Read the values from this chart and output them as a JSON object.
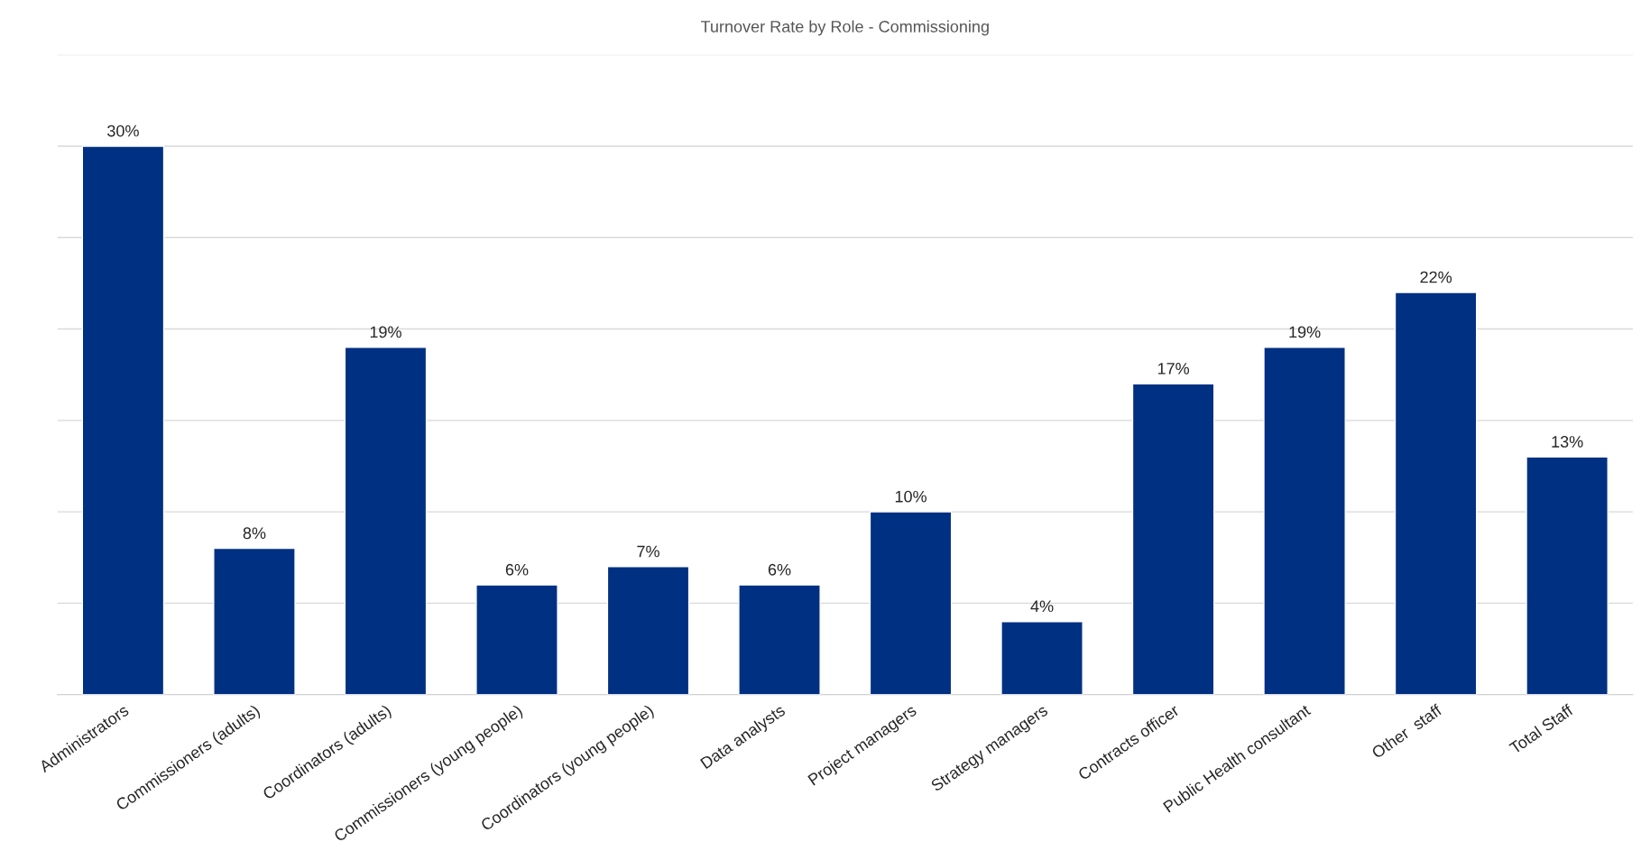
{
  "chart_data": {
    "type": "bar",
    "title": "Turnover Rate by Role - Commissioning",
    "categories": [
      "Administrators",
      "Commissioners (adults)",
      "Coordinators (adults)",
      "Commissioners (young people)",
      "Coordinators (young people)",
      "Data analysts",
      "Project managers",
      "Strategy managers",
      "Contracts officer",
      "Public Health consultant",
      "Other  staff",
      "Total Staff"
    ],
    "values": [
      30,
      8,
      19,
      6,
      7,
      6,
      10,
      4,
      17,
      19,
      22,
      13
    ],
    "value_labels": [
      "30%",
      "8%",
      "19%",
      "6%",
      "7%",
      "6%",
      "10%",
      "4%",
      "17%",
      "19%",
      "22%",
      "13%"
    ],
    "color": "#003082",
    "ylim": [
      0,
      35
    ],
    "yticks": [
      {
        "value": 0,
        "label": null
      },
      {
        "value": 5,
        "label": null
      },
      {
        "value": 10,
        "label": null
      },
      {
        "value": 15,
        "label": null
      },
      {
        "value": 20,
        "label": null
      },
      {
        "value": 25,
        "label": null
      },
      {
        "value": 30,
        "label": null
      },
      {
        "value": 35,
        "label": null
      }
    ],
    "grid": "y",
    "tick_labels": "x",
    "legend": false
  }
}
